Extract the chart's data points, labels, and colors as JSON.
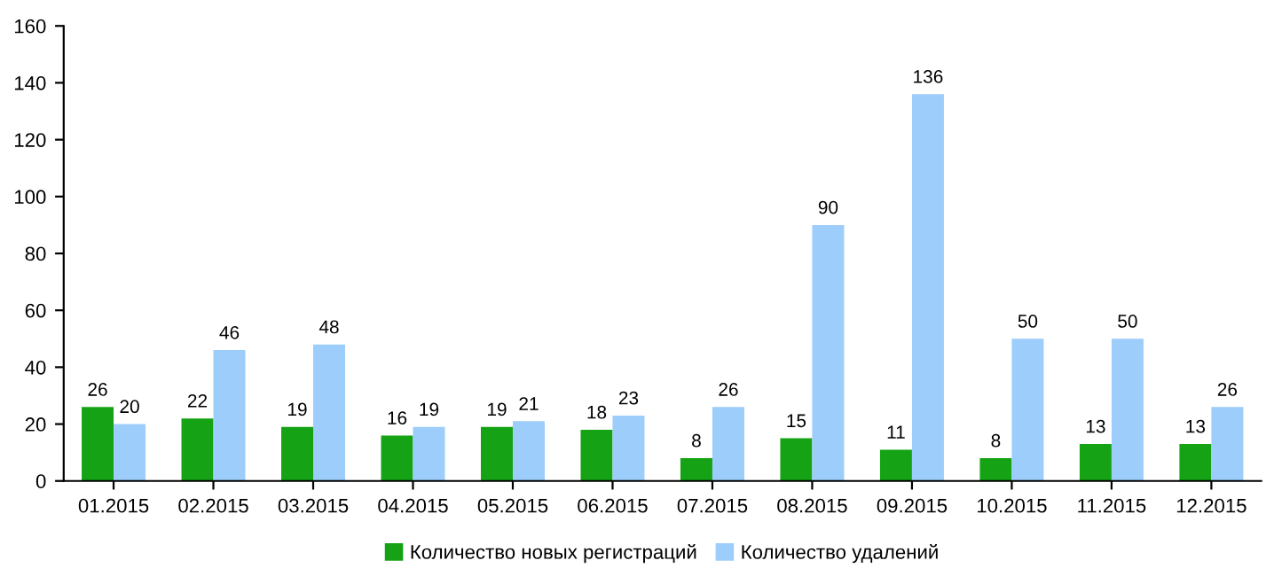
{
  "chart_data": {
    "type": "bar",
    "categories": [
      "01.2015",
      "02.2015",
      "03.2015",
      "04.2015",
      "05.2015",
      "06.2015",
      "07.2015",
      "08.2015",
      "09.2015",
      "10.2015",
      "11.2015",
      "12.2015"
    ],
    "series": [
      {
        "name": "Количество новых регистраций",
        "color": "#15a315",
        "values": [
          26,
          22,
          19,
          16,
          19,
          18,
          8,
          15,
          11,
          8,
          13,
          13
        ]
      },
      {
        "name": "Количество удалений",
        "color": "#9dcdfb",
        "values": [
          20,
          46,
          48,
          19,
          21,
          23,
          26,
          90,
          136,
          50,
          50,
          26
        ]
      }
    ],
    "ylim": [
      0,
      160
    ],
    "yticks": [
      0,
      20,
      40,
      60,
      80,
      100,
      120,
      140,
      160
    ],
    "grid": false,
    "legend": "bottom",
    "data_labels": true
  }
}
